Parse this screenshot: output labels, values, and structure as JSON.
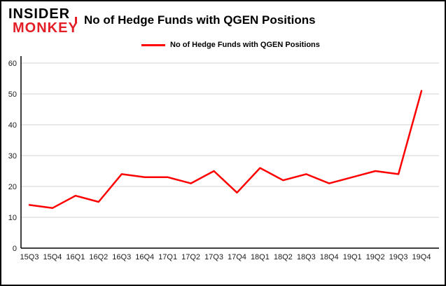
{
  "logo": {
    "line1": "INSIDER",
    "line2": "MONKEY"
  },
  "title": "No of Hedge Funds with QGEN Positions",
  "legend": {
    "label": "No of Hedge Funds with QGEN Positions"
  },
  "colors": {
    "line": "#ff0000",
    "logo_red": "#e41e26",
    "grid": "#d3d3d3",
    "axis": "#000000"
  },
  "chart_data": {
    "type": "line",
    "title": "No of Hedge Funds with QGEN Positions",
    "series_name": "No of Hedge Funds with QGEN Positions",
    "categories": [
      "15Q3",
      "15Q4",
      "16Q1",
      "16Q2",
      "16Q3",
      "16Q4",
      "17Q1",
      "17Q2",
      "17Q3",
      "17Q4",
      "18Q1",
      "18Q2",
      "18Q3",
      "18Q4",
      "19Q1",
      "19Q2",
      "19Q3",
      "19Q4"
    ],
    "values": [
      14,
      13,
      17,
      15,
      24,
      23,
      23,
      21,
      25,
      18,
      26,
      22,
      24,
      21,
      23,
      25,
      24,
      51
    ],
    "xlabel": "",
    "ylabel": "",
    "ylim": [
      0,
      60
    ],
    "yticks": [
      0,
      10,
      20,
      30,
      40,
      50,
      60
    ],
    "grid": true,
    "legend_position": "top"
  }
}
